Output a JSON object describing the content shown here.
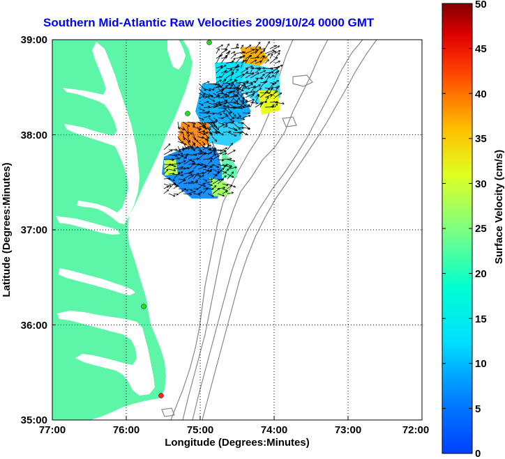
{
  "title": "Southern Mid-Atlantic Raw Velocities 2009/10/24 0000 GMT",
  "x_axis": {
    "label": "Longitude (Degrees:Minutes)",
    "ticks": [
      "77:00",
      "76:00",
      "75:00",
      "74:00",
      "73:00",
      "72:00"
    ]
  },
  "y_axis": {
    "label": "Latitude (Degrees:Minutes)",
    "ticks": [
      "39:00",
      "38:00",
      "37:00",
      "36:00",
      "35:00"
    ]
  },
  "colorbar": {
    "label": "Surface Velocity (cm/s)",
    "ticks": [
      "0",
      "5",
      "10",
      "15",
      "20",
      "25",
      "30",
      "35",
      "40",
      "45",
      "50"
    ],
    "min": 0,
    "max": 50,
    "colormap": "jet"
  },
  "map": {
    "lon_range": [
      -77,
      -72
    ],
    "lat_range": [
      35,
      39
    ],
    "land_color": "#5df5a8",
    "water_color": "#ffffff",
    "bathymetry_color": "#888888",
    "grid": "dotted",
    "station_markers": [
      {
        "name": "green",
        "color": "#22dd22"
      },
      {
        "name": "green",
        "color": "#22dd22"
      },
      {
        "name": "green",
        "color": "#22dd22"
      },
      {
        "name": "red",
        "color": "#ff2222"
      }
    ]
  }
}
